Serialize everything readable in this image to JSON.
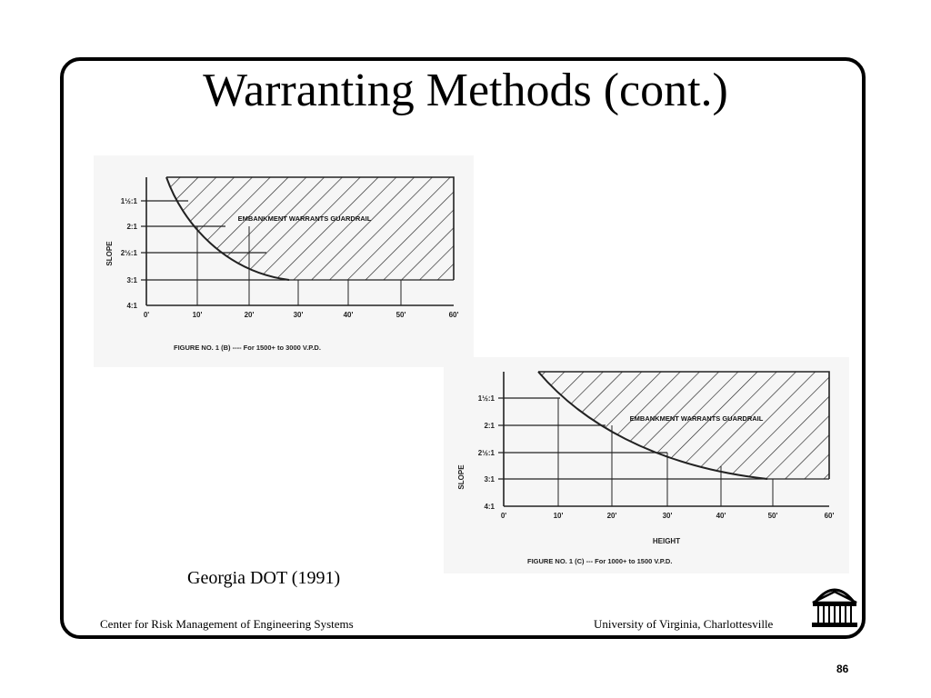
{
  "title": "Warranting Methods (cont.)",
  "caption": "Georgia DOT (1991)",
  "footer": {
    "left": "Center for Risk Management of Engineering Systems",
    "right": "University of Virginia, Charlottesville"
  },
  "page_number": "86",
  "logo_icon": "rotunda-icon",
  "figures": [
    {
      "id": "fig-b",
      "y_axis_label": "SLOPE",
      "y_ticks": [
        "1½:1",
        "2:1",
        "2½:1",
        "3:1",
        "4:1"
      ],
      "x_ticks": [
        "0'",
        "10'",
        "20'",
        "30'",
        "40'",
        "50'",
        "60'"
      ],
      "x_axis_label": "",
      "region_label": "EMBANKMENT WARRANTS GUARDRAIL",
      "caption": "FIGURE NO. 1 (B) ---- For 1500+ to 3000 V.P.D."
    },
    {
      "id": "fig-c",
      "y_axis_label": "SLOPE",
      "y_ticks": [
        "1½:1",
        "2:1",
        "2½:1",
        "3:1",
        "4:1"
      ],
      "x_ticks": [
        "0'",
        "10'",
        "20'",
        "30'",
        "40'",
        "50'",
        "60'"
      ],
      "x_axis_label": "HEIGHT",
      "region_label": "EMBANKMENT WARRANTS GUARDRAIL",
      "caption": "FIGURE NO. 1 (C) --- For 1000+ to 1500 V.P.D."
    }
  ]
}
